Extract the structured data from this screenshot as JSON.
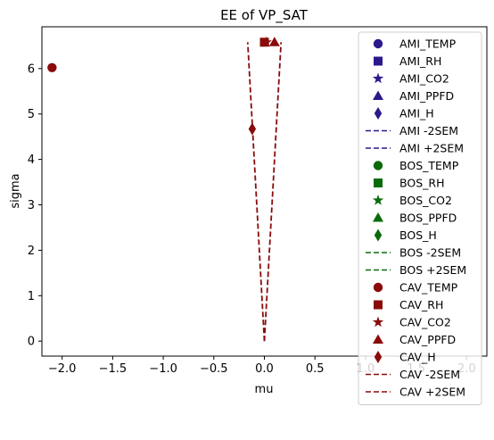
{
  "chart_data": {
    "type": "scatter",
    "title": "EE of VP_SAT",
    "xlabel": "mu",
    "ylabel": "sigma",
    "xlim": [
      -2.2,
      2.2
    ],
    "ylim": [
      -0.33,
      6.92
    ],
    "xticks": [
      -2.0,
      -1.5,
      -1.0,
      -0.5,
      0.0,
      0.5,
      1.0,
      1.5,
      2.0
    ],
    "xtick_labels": [
      "−2.0",
      "−1.5",
      "−1.0",
      "−0.5",
      "0.0",
      "0.5",
      "1.0",
      "1.5",
      "2.0"
    ],
    "yticks": [
      0,
      1,
      2,
      3,
      4,
      5,
      6
    ],
    "ytick_labels": [
      "0",
      "1",
      "2",
      "3",
      "4",
      "5",
      "6"
    ],
    "grid": false,
    "legend_position": "right",
    "groups": [
      {
        "group": "AMI",
        "color": "#2a1a8c",
        "points": [
          {
            "name": "AMI_TEMP",
            "marker": "circle",
            "x": null,
            "y": null
          },
          {
            "name": "AMI_RH",
            "marker": "square",
            "x": null,
            "y": null
          },
          {
            "name": "AMI_CO2",
            "marker": "star",
            "x": null,
            "y": null
          },
          {
            "name": "AMI_PPFD",
            "marker": "triangle",
            "x": null,
            "y": null
          },
          {
            "name": "AMI_H",
            "marker": "diamond",
            "x": null,
            "y": null
          }
        ],
        "sem_lines": [
          {
            "name": "AMI -2SEM",
            "sign": -1,
            "x": [],
            "y": []
          },
          {
            "name": "AMI +2SEM",
            "sign": 1,
            "x": [],
            "y": []
          }
        ]
      },
      {
        "group": "BOS",
        "color": "#0a6b0a",
        "points": [
          {
            "name": "BOS_TEMP",
            "marker": "circle",
            "x": null,
            "y": null
          },
          {
            "name": "BOS_RH",
            "marker": "square",
            "x": null,
            "y": null
          },
          {
            "name": "BOS_CO2",
            "marker": "star",
            "x": null,
            "y": null
          },
          {
            "name": "BOS_PPFD",
            "marker": "triangle",
            "x": null,
            "y": null
          },
          {
            "name": "BOS_H",
            "marker": "diamond",
            "x": null,
            "y": null
          }
        ],
        "sem_lines": [
          {
            "name": "BOS -2SEM",
            "sign": -1,
            "x": [],
            "y": []
          },
          {
            "name": "BOS +2SEM",
            "sign": 1,
            "x": [],
            "y": []
          }
        ]
      },
      {
        "group": "CAV",
        "color": "#8b0a0a",
        "points": [
          {
            "name": "CAV_TEMP",
            "marker": "circle",
            "x": -2.1,
            "y": 6.02
          },
          {
            "name": "CAV_RH",
            "marker": "square",
            "x": 0.0,
            "y": 6.58
          },
          {
            "name": "CAV_CO2",
            "marker": "star",
            "x": 0.02,
            "y": 6.58
          },
          {
            "name": "CAV_PPFD",
            "marker": "triangle",
            "x": 0.1,
            "y": 6.58
          },
          {
            "name": "CAV_H",
            "marker": "diamond",
            "x": -0.12,
            "y": 4.67
          }
        ],
        "sem_lines": [
          {
            "name": "CAV -2SEM",
            "sign": -1,
            "x": [
              0.0,
              -0.165
            ],
            "y": [
              0.0,
              6.58
            ]
          },
          {
            "name": "CAV +2SEM",
            "sign": 1,
            "x": [
              0.0,
              0.165
            ],
            "y": [
              0.0,
              6.58
            ]
          }
        ]
      }
    ]
  }
}
